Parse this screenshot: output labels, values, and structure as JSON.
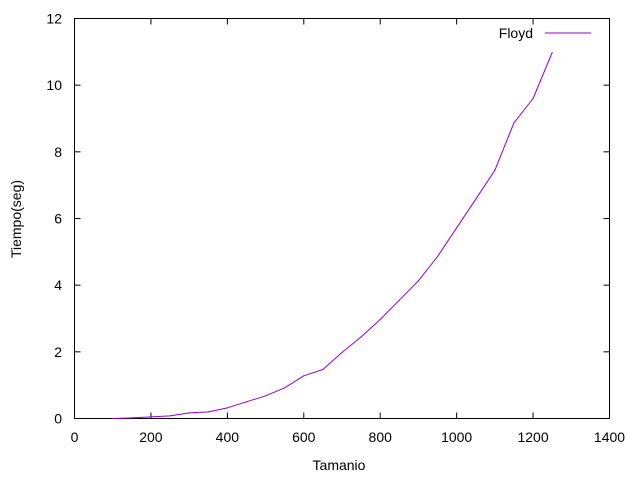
{
  "chart_data": {
    "type": "line",
    "title": "",
    "xlabel": "Tamanio",
    "ylabel": "Tiempo(seg)",
    "xlim": [
      0,
      1400
    ],
    "ylim": [
      0,
      12
    ],
    "xticks": [
      0,
      200,
      400,
      600,
      800,
      1000,
      1200,
      1400
    ],
    "yticks": [
      0,
      2,
      4,
      6,
      8,
      10,
      12
    ],
    "grid": false,
    "legend_position": "top-right",
    "series": [
      {
        "name": "Floyd",
        "color": "#9400d3",
        "x": [
          100,
          150,
          200,
          250,
          300,
          350,
          400,
          450,
          500,
          550,
          600,
          650,
          700,
          750,
          800,
          850,
          900,
          950,
          1000,
          1050,
          1100,
          1150,
          1200,
          1250
        ],
        "y": [
          0.0,
          0.02,
          0.05,
          0.08,
          0.17,
          0.2,
          0.32,
          0.5,
          0.68,
          0.92,
          1.28,
          1.47,
          1.98,
          2.45,
          2.97,
          3.55,
          4.13,
          4.86,
          5.72,
          6.58,
          7.45,
          8.87,
          9.6,
          10.98
        ]
      }
    ]
  }
}
